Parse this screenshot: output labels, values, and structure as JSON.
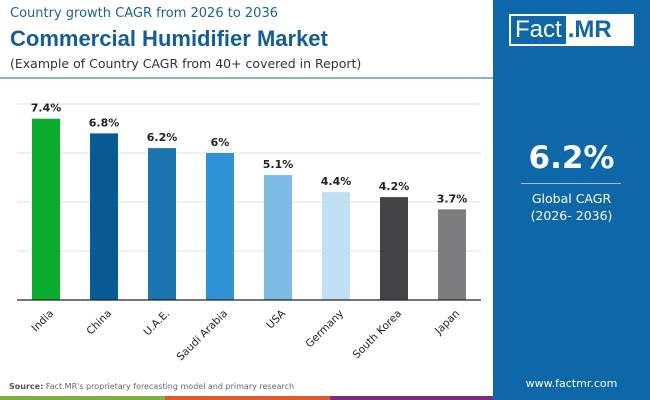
{
  "header": {
    "subtitle": "Country growth CAGR from 2026 to 2036",
    "title": "Commercial Humidifier Market",
    "note": "(Example of Country CAGR from 40+ covered in Report)"
  },
  "logo": {
    "part1": "Fact",
    "part2": ".MR"
  },
  "global": {
    "value": "6.2%",
    "label_line1": "Global CAGR",
    "label_line2": "(2026- 2036)"
  },
  "footer": {
    "source_label": "Source:",
    "source_text": "Fact.MR's proprietary forecasting model and primary research",
    "url": "www.factmr.com"
  },
  "colors": {
    "panel": "#0d67a8",
    "strip": [
      "#7bb443",
      "#e0592a",
      "#7b2b82"
    ]
  },
  "chart_data": {
    "type": "bar",
    "title": "",
    "xlabel": "",
    "ylabel": "",
    "ylim": [
      0,
      8
    ],
    "grid": true,
    "categories": [
      "India",
      "China",
      "U.A.E.",
      "Saudi Arabia",
      "USA",
      "Germany",
      "South Korea",
      "Japan"
    ],
    "values": [
      7.4,
      6.8,
      6.2,
      6,
      5.1,
      4.4,
      4.2,
      3.7
    ],
    "labels": [
      "7.4%",
      "6.8%",
      "6.2%",
      "6%",
      "5.1%",
      "4.4%",
      "4.2%",
      "3.7%"
    ],
    "colors": [
      "#0aad2e",
      "#075a94",
      "#1a74b0",
      "#2f93d7",
      "#7dbde5",
      "#c0e0f4",
      "#434345",
      "#7d7d80"
    ]
  }
}
